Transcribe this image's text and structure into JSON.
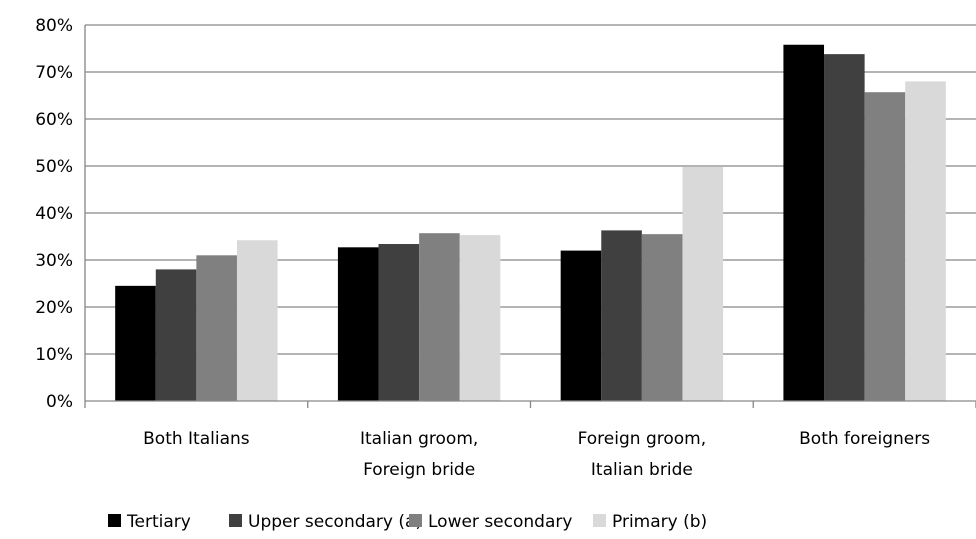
{
  "chart_data": {
    "type": "bar",
    "title": "",
    "xlabel": "",
    "ylabel": "",
    "ylim": [
      0,
      80
    ],
    "yticks": [
      "0%",
      "10%",
      "20%",
      "30%",
      "40%",
      "50%",
      "60%",
      "70%",
      "80%"
    ],
    "grid": true,
    "legend_position": "bottom",
    "categories": [
      [
        "Both Italians"
      ],
      [
        "Italian groom,",
        "Foreign bride"
      ],
      [
        "Foreign groom,",
        "Italian bride"
      ],
      [
        "Both foreigners"
      ]
    ],
    "series": [
      {
        "name": "Tertiary",
        "color": "#000000",
        "values": [
          24.5,
          32.7,
          32.0,
          75.8
        ]
      },
      {
        "name": "Upper secondary (a)",
        "color": "#404040",
        "values": [
          28.0,
          33.4,
          36.3,
          73.8
        ]
      },
      {
        "name": "Lower secondary",
        "color": "#808080",
        "values": [
          31.0,
          35.7,
          35.5,
          65.7
        ]
      },
      {
        "name": "Primary (b)",
        "color": "#d9d9d9",
        "values": [
          34.2,
          35.3,
          49.8,
          68.0
        ]
      }
    ]
  }
}
